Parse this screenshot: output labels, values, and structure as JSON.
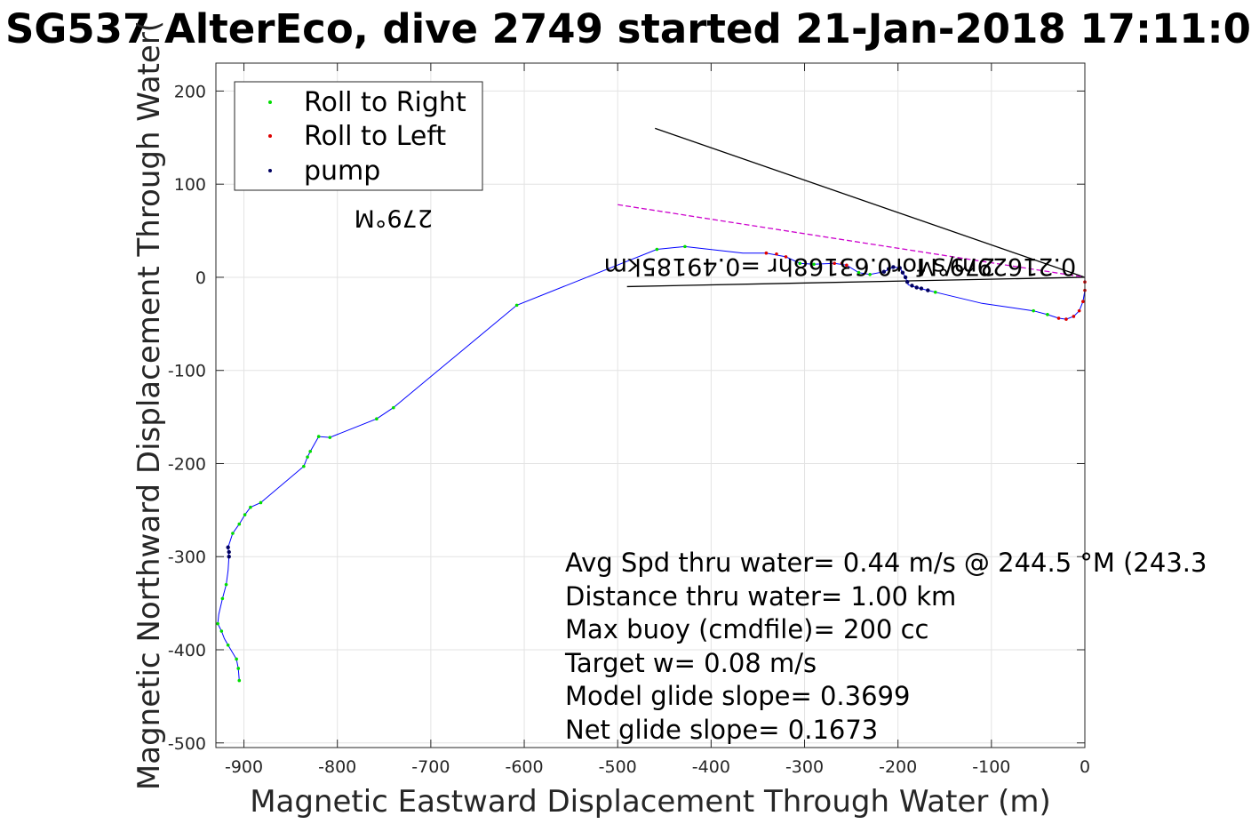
{
  "chart_data": {
    "type": "scatter",
    "title": "SG537 AlterEco, dive 2749 started 21-Jan-2018 17:11:0",
    "xlabel": "Magnetic Eastward Displacement Through Water (m)",
    "ylabel": "Magnetic Northward Displacement Through Water(",
    "xlim": [
      -930,
      0
    ],
    "ylim": [
      -505,
      230
    ],
    "xticks": [
      -900,
      -800,
      -700,
      -600,
      -500,
      -400,
      -300,
      -200,
      -100,
      0
    ],
    "yticks": [
      -500,
      -400,
      -300,
      -200,
      -100,
      0,
      100,
      200
    ],
    "grid": true,
    "legend_position": "top-left",
    "legend": [
      {
        "label": "Roll to Right",
        "color": "#00dd00"
      },
      {
        "label": "Roll to Left",
        "color": "#dd0000"
      },
      {
        "label": "pump",
        "color": "#000060"
      }
    ],
    "track_color": "#0000ff",
    "track": [
      [
        -905,
        -433
      ],
      [
        -906,
        -420
      ],
      [
        -908,
        -410
      ],
      [
        -917,
        -395
      ],
      [
        -921,
        -388
      ],
      [
        -924,
        -380
      ],
      [
        -928,
        -372
      ],
      [
        -927,
        -362
      ],
      [
        -923,
        -345
      ],
      [
        -919,
        -330
      ],
      [
        -917,
        -315
      ],
      [
        -916,
        -300
      ],
      [
        -917,
        -290
      ],
      [
        -912,
        -275
      ],
      [
        -905,
        -265
      ],
      [
        -899,
        -255
      ],
      [
        -893,
        -247
      ],
      [
        -882,
        -242
      ],
      [
        -836,
        -203
      ],
      [
        -832,
        -193
      ],
      [
        -829,
        -187
      ],
      [
        -820,
        -171
      ],
      [
        -808,
        -172
      ],
      [
        -758,
        -152
      ],
      [
        -740,
        -140
      ],
      [
        -608,
        -30
      ],
      [
        -458,
        30
      ],
      [
        -428,
        33
      ],
      [
        -366,
        26
      ],
      [
        -341,
        26
      ],
      [
        -320,
        22
      ],
      [
        -305,
        15
      ],
      [
        -290,
        14
      ],
      [
        -268,
        15
      ],
      [
        -255,
        13
      ],
      [
        -242,
        5
      ],
      [
        -230,
        3
      ],
      [
        -215,
        6
      ],
      [
        -205,
        11
      ],
      [
        -198,
        10
      ],
      [
        -192,
        0
      ],
      [
        -189,
        -8
      ],
      [
        -180,
        -11
      ],
      [
        -168,
        -14
      ],
      [
        -160,
        -16
      ],
      [
        -110,
        -28
      ],
      [
        -55,
        -36
      ],
      [
        -40,
        -40
      ],
      [
        -28,
        -44
      ],
      [
        -20,
        -45
      ],
      [
        -12,
        -42
      ],
      [
        -6,
        -36
      ],
      [
        -2,
        -26
      ],
      [
        0,
        -14
      ],
      [
        0,
        -3
      ]
    ],
    "roll_right_points": [
      [
        -905,
        -433
      ],
      [
        -906,
        -420
      ],
      [
        -908,
        -410
      ],
      [
        -917,
        -395
      ],
      [
        -924,
        -380
      ],
      [
        -928,
        -372
      ],
      [
        -923,
        -345
      ],
      [
        -919,
        -330
      ],
      [
        -912,
        -275
      ],
      [
        -905,
        -265
      ],
      [
        -899,
        -255
      ],
      [
        -893,
        -247
      ],
      [
        -882,
        -242
      ],
      [
        -836,
        -203
      ],
      [
        -832,
        -193
      ],
      [
        -829,
        -187
      ],
      [
        -820,
        -171
      ],
      [
        -808,
        -172
      ],
      [
        -758,
        -152
      ],
      [
        -740,
        -140
      ],
      [
        -608,
        -30
      ],
      [
        -458,
        30
      ],
      [
        -428,
        33
      ],
      [
        -305,
        15
      ],
      [
        -290,
        14
      ],
      [
        -242,
        5
      ],
      [
        -230,
        3
      ],
      [
        -160,
        -16
      ],
      [
        -55,
        -36
      ],
      [
        -40,
        -40
      ]
    ],
    "roll_left_points": [
      [
        -341,
        26
      ],
      [
        -330,
        25
      ],
      [
        -320,
        22
      ],
      [
        -268,
        15
      ],
      [
        -260,
        15
      ],
      [
        -255,
        13
      ],
      [
        -28,
        -44
      ],
      [
        -20,
        -45
      ],
      [
        -12,
        -42
      ],
      [
        -6,
        -36
      ],
      [
        -2,
        -26
      ],
      [
        0,
        -14
      ],
      [
        0,
        -5
      ]
    ],
    "pump_points": [
      [
        -917,
        -290
      ],
      [
        -916,
        -295
      ],
      [
        -916,
        -300
      ],
      [
        -215,
        6
      ],
      [
        -210,
        9
      ],
      [
        -205,
        11
      ],
      [
        -198,
        10
      ],
      [
        -195,
        5
      ],
      [
        -192,
        0
      ],
      [
        -190,
        -5
      ],
      [
        -185,
        -9
      ],
      [
        -180,
        -11
      ],
      [
        -175,
        -12
      ],
      [
        -168,
        -14
      ]
    ],
    "current_line_segments": [
      [
        [
          -460,
          160
        ],
        [
          0,
          0
        ]
      ],
      [
        [
          -490,
          -10
        ],
        [
          0,
          0
        ]
      ]
    ],
    "magenta_line": [
      [
        -500,
        78
      ],
      [
        0,
        0
      ]
    ],
    "rotated_annotations": [
      {
        "text": "279°M",
        "x": -138,
        "y": 20,
        "angle": 180
      },
      {
        "text": "0.21629m/s for0.63168hr =0.49185km",
        "x": -262,
        "y": 20,
        "angle": 180
      },
      {
        "text": "279°M",
        "x": -740,
        "y": 72,
        "angle": 180
      }
    ],
    "summary_lines": [
      "Avg Spd thru water=  0.44 m/s @ 244.5 °M (243.3",
      "Distance thru water=  1.00 km",
      "Max buoy (cmdfile)= 200 cc",
      "Target w= 0.08 m/s",
      "Model glide slope= 0.3699",
      "Net glide slope= 0.1673"
    ]
  }
}
